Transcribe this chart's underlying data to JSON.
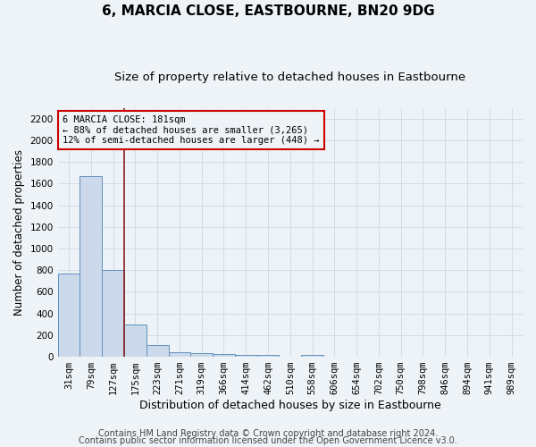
{
  "title": "6, MARCIA CLOSE, EASTBOURNE, BN20 9DG",
  "subtitle": "Size of property relative to detached houses in Eastbourne",
  "xlabel": "Distribution of detached houses by size in Eastbourne",
  "ylabel": "Number of detached properties",
  "footnote1": "Contains HM Land Registry data © Crown copyright and database right 2024.",
  "footnote2": "Contains public sector information licensed under the Open Government Licence v3.0.",
  "categories": [
    "31sqm",
    "79sqm",
    "127sqm",
    "175sqm",
    "223sqm",
    "271sqm",
    "319sqm",
    "366sqm",
    "414sqm",
    "462sqm",
    "510sqm",
    "558sqm",
    "606sqm",
    "654sqm",
    "702sqm",
    "750sqm",
    "798sqm",
    "846sqm",
    "894sqm",
    "941sqm",
    "989sqm"
  ],
  "values": [
    770,
    1670,
    800,
    300,
    110,
    40,
    30,
    25,
    20,
    20,
    0,
    20,
    0,
    0,
    0,
    0,
    0,
    0,
    0,
    0,
    0
  ],
  "bar_color": "#ccd9ea",
  "bar_edge_color": "#6090be",
  "vline_color": "#8b1a1a",
  "vline_x": 2.5,
  "annotation_text_line1": "6 MARCIA CLOSE: 181sqm",
  "annotation_text_line2": "← 88% of detached houses are smaller (3,265)",
  "annotation_text_line3": "12% of semi-detached houses are larger (448) →",
  "annotation_box_edgecolor": "#cc0000",
  "annotation_box_facecolor": "#eef3f8",
  "ylim": [
    0,
    2300
  ],
  "yticks": [
    0,
    200,
    400,
    600,
    800,
    1000,
    1200,
    1400,
    1600,
    1800,
    2000,
    2200
  ],
  "background_color": "#eef3f8",
  "grid_color": "#d0d8e4",
  "title_fontsize": 11,
  "subtitle_fontsize": 9.5,
  "ylabel_fontsize": 8.5,
  "xlabel_fontsize": 9,
  "tick_fontsize": 7.5,
  "annotation_fontsize": 7.5,
  "footnote_fontsize": 7
}
